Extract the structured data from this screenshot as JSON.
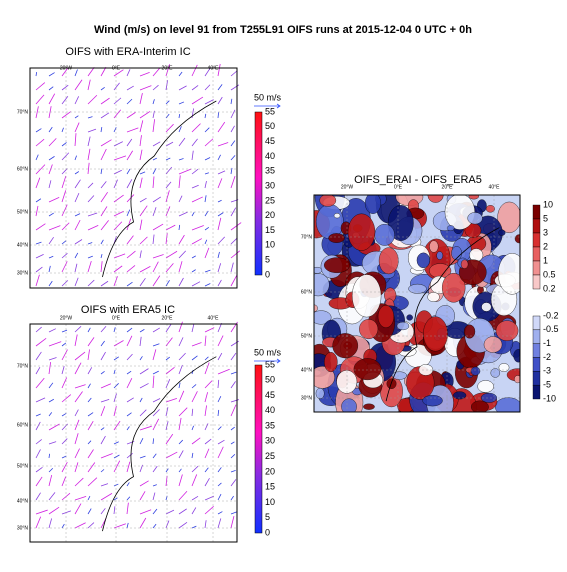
{
  "title": "Wind (m/s) on level 91 from T255L91 OIFS runs at 2015-12-04 0 UTC + 0h",
  "panels": [
    {
      "title": "OIFS with ERA-Interim IC",
      "lon_labels": [
        "20°W",
        "0°E",
        "20°E",
        "40°E"
      ],
      "lat_labels": [
        "70°N",
        "60°N",
        "50°N",
        "40°N",
        "30°N"
      ],
      "reference": "50 m/s",
      "colorbar": {
        "ticks": [
          55,
          50,
          45,
          40,
          35,
          30,
          25,
          20,
          15,
          10,
          5,
          0
        ]
      }
    },
    {
      "title": "OIFS with ERA5 IC",
      "lon_labels": [
        "20°W",
        "0°E",
        "20°E",
        "40°E"
      ],
      "lat_labels": [
        "70°N",
        "60°N",
        "50°N",
        "40°N",
        "30°N"
      ],
      "reference": "50 m/s",
      "colorbar": {
        "ticks": [
          55,
          50,
          45,
          40,
          35,
          30,
          25,
          20,
          15,
          10,
          5,
          0
        ]
      }
    },
    {
      "title": "OIFS_ERAI - OIFS_ERA5",
      "lon_labels": [
        "20°W",
        "0°E",
        "20°E",
        "40°E"
      ],
      "lat_labels": [
        "70°N",
        "60°N",
        "50°N",
        "40°N",
        "30°N"
      ],
      "colorbar": {
        "ticks_positive": [
          10,
          5,
          3,
          2,
          1,
          0.5,
          0.2
        ],
        "ticks_negative": [
          -0.2,
          -0.5,
          -1,
          -2,
          -3,
          -5,
          -10
        ]
      }
    }
  ]
}
